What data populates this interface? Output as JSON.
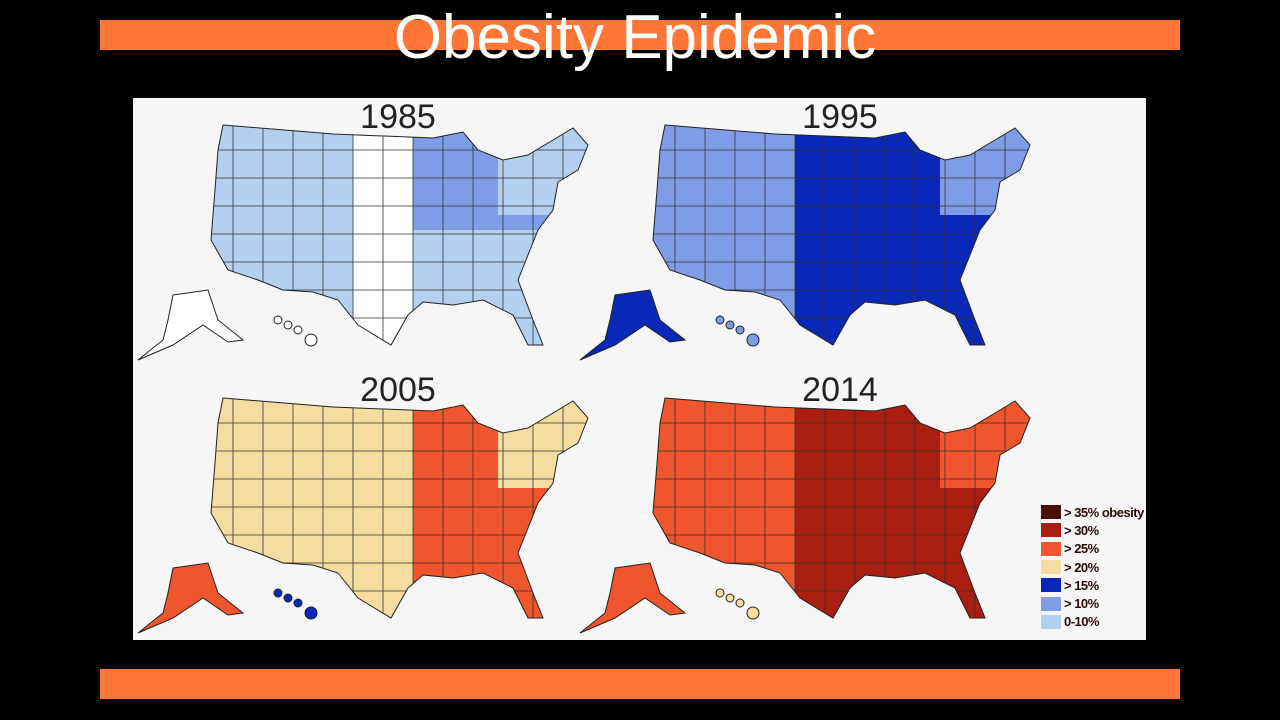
{
  "title": "Obesity Epidemic",
  "legend": [
    {
      "label": "> 35% obesity",
      "color": "#4a0c08"
    },
    {
      "label": "> 30%",
      "color": "#a81e10"
    },
    {
      "label": "> 25%",
      "color": "#f0562e"
    },
    {
      "label": "> 20%",
      "color": "#f5dca0"
    },
    {
      "label": "> 15%",
      "color": "#0a28b8"
    },
    {
      "label": "> 10%",
      "color": "#7f9ce6"
    },
    {
      "label": "0-10%",
      "color": "#b4d0f0"
    }
  ],
  "no_data_color": "#ffffff",
  "maps": [
    {
      "year": "1985",
      "regions": {
        "west": "0-10%",
        "mountain": "0-10%",
        "plains": "none",
        "midwest": "> 10%",
        "south": "0-10%",
        "northeast": "0-10%",
        "alaska": "none",
        "hawaii": "none"
      }
    },
    {
      "year": "1995",
      "regions": {
        "west": "> 10%",
        "mountain": "> 10%",
        "plains": "> 15%",
        "midwest": "> 15%",
        "south": "> 15%",
        "northeast": "> 10%",
        "alaska": "> 15%",
        "hawaii": "> 10%"
      }
    },
    {
      "year": "2005",
      "regions": {
        "west": "> 20%",
        "mountain": "> 20%",
        "plains": "> 20%",
        "midwest": "> 25%",
        "south": "> 25%",
        "northeast": "> 20%",
        "alaska": "> 25%",
        "hawaii": "> 15%"
      }
    },
    {
      "year": "2014",
      "regions": {
        "west": "> 25%",
        "mountain": "> 25%",
        "plains": "> 30%",
        "midwest": "> 30%",
        "south": "> 30%",
        "northeast": "> 25%",
        "alaska": "> 25%",
        "hawaii": "> 20%"
      }
    }
  ]
}
